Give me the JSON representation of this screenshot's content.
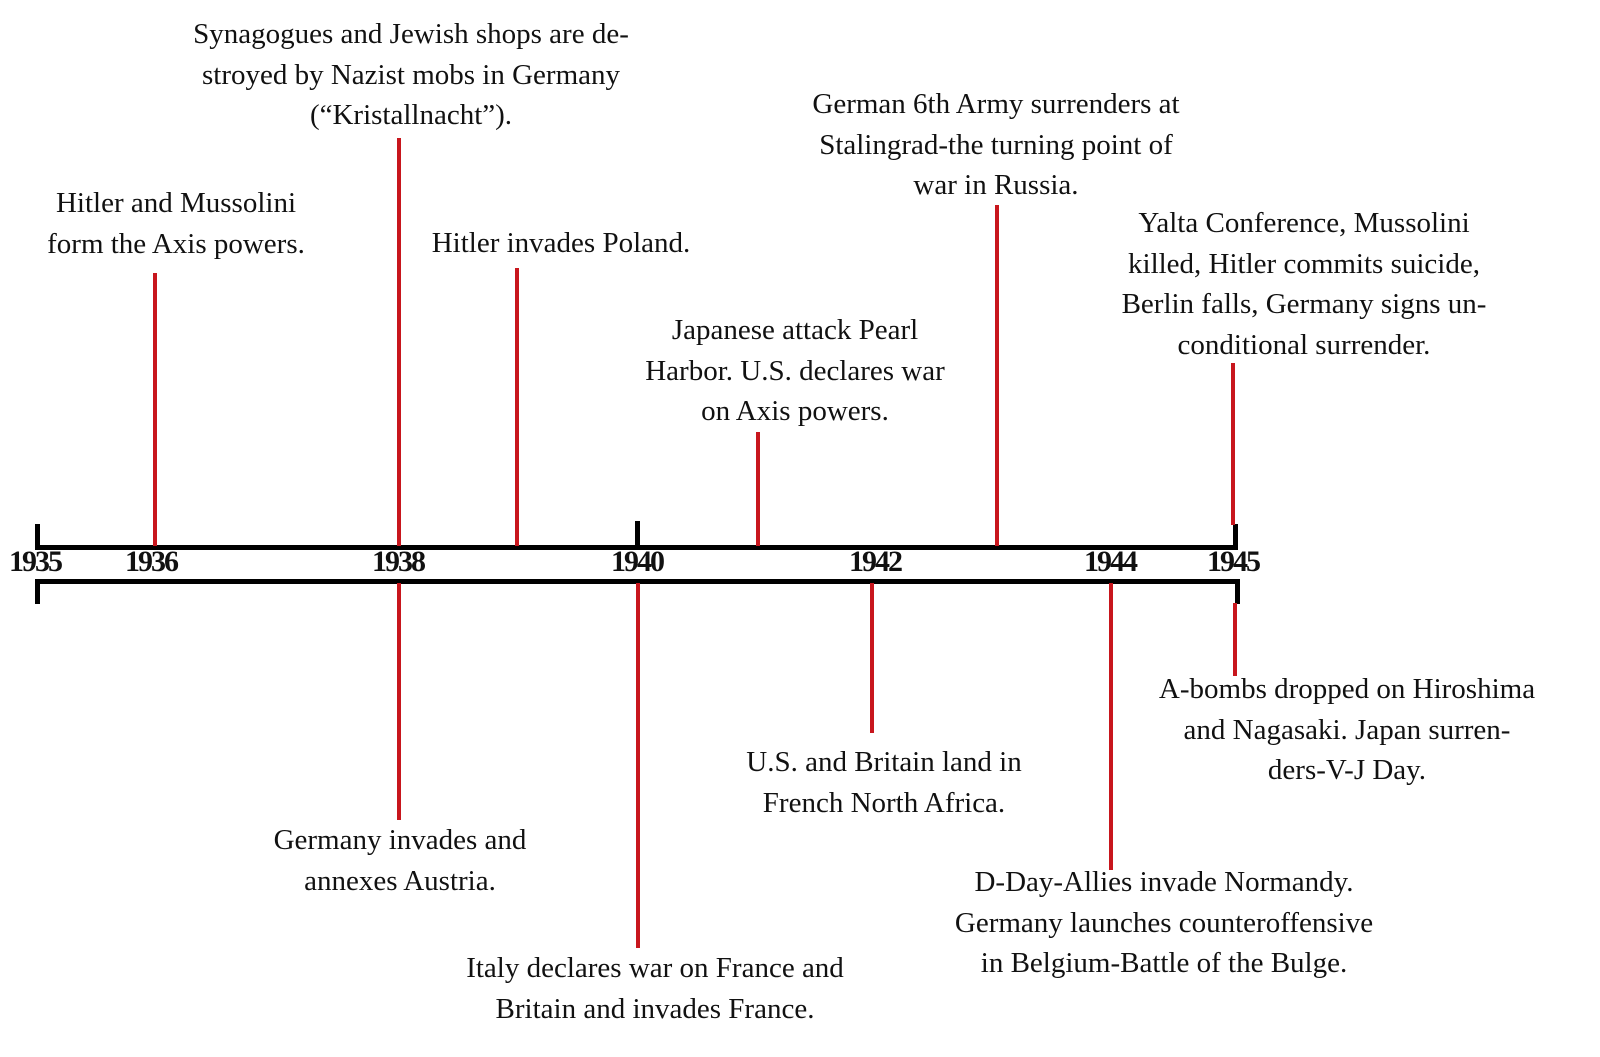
{
  "colors": {
    "axis": "#000000",
    "connector": "#c8161d"
  },
  "years": [
    "1935",
    "1936",
    "1938",
    "1940",
    "1942",
    "1944",
    "1945"
  ],
  "events_above": [
    {
      "year": "1936",
      "text": [
        "Hitler and Mussolini",
        "form the Axis powers."
      ]
    },
    {
      "year": "1938",
      "text": [
        "Synagogues and Jewish shops are de-",
        "stroyed by Nazist mobs in Germany",
        "(“Kristallnacht”)."
      ]
    },
    {
      "year": "1939",
      "text": [
        "Hitler invades Poland."
      ]
    },
    {
      "year": "1941",
      "text": [
        "Japanese attack Pearl",
        "Harbor. U.S. declares war",
        "on Axis powers."
      ]
    },
    {
      "year": "1943",
      "text": [
        "German 6th Army surrenders at",
        "Stalingrad-the turning point of",
        "war in Russia."
      ]
    },
    {
      "year": "1945",
      "text": [
        "Yalta Conference, Mussolini",
        "killed, Hitler commits suicide,",
        "Berlin falls, Germany signs un-",
        "conditional surrender."
      ]
    }
  ],
  "events_below": [
    {
      "year": "1938",
      "text": [
        "Germany invades and",
        "annexes Austria."
      ]
    },
    {
      "year": "1940",
      "text": [
        "Italy declares war on France and",
        "Britain and invades France."
      ]
    },
    {
      "year": "1942",
      "text": [
        "U.S. and Britain land in",
        "French North Africa."
      ]
    },
    {
      "year": "1944",
      "text": [
        "D-Day-Allies invade Normandy.",
        "Germany launches counteroffensive",
        "in Belgium-Battle of the Bulge."
      ]
    },
    {
      "year": "1945",
      "text": [
        "A-bombs dropped on Hiroshima",
        "and Nagasaki. Japan surren-",
        "ders-V-J Day."
      ]
    }
  ]
}
